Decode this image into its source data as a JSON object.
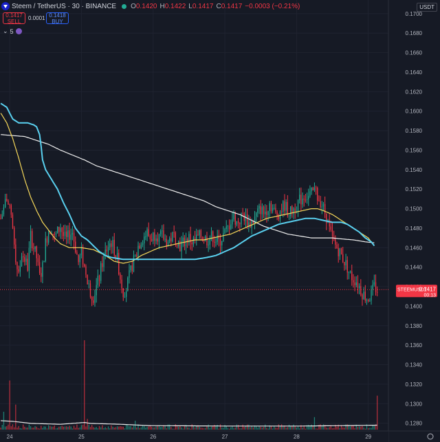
{
  "header": {
    "symbol_title": "Steem / TetherUS · 30 · BINANCE",
    "open_label": "O",
    "open_value": "0.1420",
    "high_label": "H",
    "high_value": "0.1422",
    "low_label": "L",
    "low_value": "0.1417",
    "close_label": "C",
    "close_value": "0.1417",
    "change_value": "−0.0003 (−0.21%)"
  },
  "trade": {
    "sell_price": "0.1417",
    "sell_label": "SELL",
    "spread": "0.0001",
    "buy_price": "0.1418",
    "buy_label": "BUY"
  },
  "indicator_toggle": {
    "label": "5"
  },
  "currency_button": "USDT",
  "colors": {
    "background": "#161a25",
    "up": "#22ab94",
    "down": "#f23645",
    "ma_cyan": "#5ad1f0",
    "ma_yellow": "#f7d95b",
    "ma_white": "#f0f0f0",
    "grid": "#1f2330"
  },
  "chart_data": {
    "type": "candlestick",
    "symbol_tag": "STEEMUSDT",
    "last_price": "0.1417",
    "countdown": "00:13",
    "y_ticks": [
      "0.1700",
      "0.1680",
      "0.1660",
      "0.1640",
      "0.1620",
      "0.1600",
      "0.1580",
      "0.1560",
      "0.1540",
      "0.1520",
      "0.1500",
      "0.1480",
      "0.1460",
      "0.1440",
      "0.1420",
      "0.1400",
      "0.1380",
      "0.1360",
      "0.1340",
      "0.1320",
      "0.1300",
      "0.1280"
    ],
    "ylim": [
      0.1272,
      0.1714
    ],
    "x_ticks": [
      "24",
      "25",
      "26",
      "27",
      "28",
      "29"
    ],
    "x_tick_index": [
      6,
      54,
      102,
      150,
      198,
      246
    ],
    "num_bars": 260,
    "price_close": [
      [
        0,
        0.149
      ],
      [
        2,
        0.15
      ],
      [
        4,
        0.1512
      ],
      [
        6,
        0.1497
      ],
      [
        8,
        0.1478
      ],
      [
        10,
        0.145
      ],
      [
        12,
        0.143
      ],
      [
        14,
        0.1455
      ],
      [
        16,
        0.1448
      ],
      [
        18,
        0.144
      ],
      [
        20,
        0.1472
      ],
      [
        22,
        0.146
      ],
      [
        24,
        0.145
      ],
      [
        26,
        0.143
      ],
      [
        28,
        0.144
      ],
      [
        30,
        0.1465
      ],
      [
        32,
        0.1478
      ],
      [
        34,
        0.148
      ],
      [
        36,
        0.147
      ],
      [
        38,
        0.1476
      ],
      [
        40,
        0.1482
      ],
      [
        42,
        0.1472
      ],
      [
        44,
        0.1468
      ],
      [
        46,
        0.1474
      ],
      [
        48,
        0.1476
      ],
      [
        50,
        0.146
      ],
      [
        52,
        0.1445
      ],
      [
        54,
        0.1455
      ],
      [
        56,
        0.144
      ],
      [
        58,
        0.1425
      ],
      [
        60,
        0.1415
      ],
      [
        62,
        0.141
      ],
      [
        64,
        0.142
      ],
      [
        66,
        0.143
      ],
      [
        68,
        0.1445
      ],
      [
        70,
        0.1455
      ],
      [
        72,
        0.1462
      ],
      [
        74,
        0.1466
      ],
      [
        76,
        0.1458
      ],
      [
        78,
        0.1448
      ],
      [
        80,
        0.143
      ],
      [
        82,
        0.1415
      ],
      [
        84,
        0.1418
      ],
      [
        86,
        0.143
      ],
      [
        88,
        0.1442
      ],
      [
        90,
        0.145
      ],
      [
        92,
        0.1462
      ],
      [
        94,
        0.1468
      ],
      [
        96,
        0.1472
      ],
      [
        98,
        0.1475
      ],
      [
        100,
        0.147
      ],
      [
        102,
        0.1472
      ],
      [
        104,
        0.1476
      ],
      [
        106,
        0.147
      ],
      [
        108,
        0.1472
      ],
      [
        110,
        0.1468
      ],
      [
        112,
        0.1466
      ],
      [
        114,
        0.147
      ],
      [
        116,
        0.1472
      ],
      [
        118,
        0.1468
      ],
      [
        120,
        0.1462
      ],
      [
        122,
        0.1465
      ],
      [
        124,
        0.1468
      ],
      [
        126,
        0.147
      ],
      [
        128,
        0.1466
      ],
      [
        130,
        0.1468
      ],
      [
        132,
        0.147
      ],
      [
        134,
        0.1472
      ],
      [
        136,
        0.147
      ],
      [
        138,
        0.1468
      ],
      [
        140,
        0.147
      ],
      [
        142,
        0.1472
      ],
      [
        144,
        0.1468
      ],
      [
        146,
        0.1466
      ],
      [
        148,
        0.147
      ],
      [
        150,
        0.1475
      ],
      [
        152,
        0.148
      ],
      [
        154,
        0.1488
      ],
      [
        156,
        0.1492
      ],
      [
        158,
        0.1486
      ],
      [
        160,
        0.1488
      ],
      [
        162,
        0.1494
      ],
      [
        164,
        0.149
      ],
      [
        166,
        0.1484
      ],
      [
        168,
        0.1486
      ],
      [
        170,
        0.149
      ],
      [
        172,
        0.1496
      ],
      [
        174,
        0.15
      ],
      [
        176,
        0.1495
      ],
      [
        178,
        0.15
      ],
      [
        180,
        0.1506
      ],
      [
        182,
        0.15
      ],
      [
        184,
        0.1494
      ],
      [
        186,
        0.1496
      ],
      [
        188,
        0.15
      ],
      [
        190,
        0.1504
      ],
      [
        192,
        0.1498
      ],
      [
        194,
        0.1496
      ],
      [
        196,
        0.15
      ],
      [
        198,
        0.1504
      ],
      [
        200,
        0.1508
      ],
      [
        202,
        0.1512
      ],
      [
        204,
        0.1514
      ],
      [
        206,
        0.1512
      ],
      [
        208,
        0.1515
      ],
      [
        210,
        0.1518
      ],
      [
        212,
        0.1512
      ],
      [
        214,
        0.1508
      ],
      [
        216,
        0.15
      ],
      [
        218,
        0.1492
      ],
      [
        220,
        0.1478
      ],
      [
        222,
        0.1468
      ],
      [
        224,
        0.1462
      ],
      [
        226,
        0.1458
      ],
      [
        228,
        0.1452
      ],
      [
        230,
        0.1446
      ],
      [
        232,
        0.144
      ],
      [
        234,
        0.1432
      ],
      [
        236,
        0.1428
      ],
      [
        238,
        0.1426
      ],
      [
        240,
        0.142
      ],
      [
        242,
        0.1414
      ],
      [
        244,
        0.141
      ],
      [
        246,
        0.1408
      ],
      [
        248,
        0.1412
      ],
      [
        250,
        0.142
      ],
      [
        252,
        0.1417
      ]
    ],
    "ma_cyan": [
      [
        0,
        0.1608
      ],
      [
        4,
        0.1604
      ],
      [
        8,
        0.1592
      ],
      [
        12,
        0.1588
      ],
      [
        16,
        0.1588
      ],
      [
        18,
        0.1588
      ],
      [
        22,
        0.1586
      ],
      [
        24,
        0.1584
      ],
      [
        26,
        0.1576
      ],
      [
        27,
        0.1564
      ],
      [
        28,
        0.155
      ],
      [
        30,
        0.154
      ],
      [
        34,
        0.153
      ],
      [
        38,
        0.152
      ],
      [
        42,
        0.1506
      ],
      [
        46,
        0.1494
      ],
      [
        50,
        0.148
      ],
      [
        54,
        0.1472
      ],
      [
        58,
        0.1468
      ],
      [
        62,
        0.1462
      ],
      [
        66,
        0.1456
      ],
      [
        70,
        0.1452
      ],
      [
        74,
        0.145
      ],
      [
        78,
        0.1449
      ],
      [
        82,
        0.1448
      ],
      [
        90,
        0.1448
      ],
      [
        98,
        0.1448
      ],
      [
        106,
        0.1448
      ],
      [
        114,
        0.1448
      ],
      [
        122,
        0.1448
      ],
      [
        130,
        0.1448
      ],
      [
        138,
        0.145
      ],
      [
        144,
        0.1452
      ],
      [
        150,
        0.1456
      ],
      [
        156,
        0.146
      ],
      [
        162,
        0.1466
      ],
      [
        168,
        0.1472
      ],
      [
        174,
        0.1476
      ],
      [
        180,
        0.148
      ],
      [
        186,
        0.1484
      ],
      [
        192,
        0.1486
      ],
      [
        198,
        0.1488
      ],
      [
        204,
        0.149
      ],
      [
        210,
        0.149
      ],
      [
        216,
        0.1488
      ],
      [
        222,
        0.1486
      ],
      [
        228,
        0.1486
      ],
      [
        232,
        0.1484
      ],
      [
        236,
        0.148
      ],
      [
        240,
        0.1476
      ],
      [
        244,
        0.147
      ],
      [
        248,
        0.1466
      ],
      [
        250,
        0.1462
      ]
    ],
    "ma_yellow": [
      [
        0,
        0.1598
      ],
      [
        4,
        0.1588
      ],
      [
        8,
        0.1572
      ],
      [
        12,
        0.1552
      ],
      [
        16,
        0.153
      ],
      [
        20,
        0.1512
      ],
      [
        24,
        0.1498
      ],
      [
        28,
        0.1486
      ],
      [
        32,
        0.1478
      ],
      [
        36,
        0.147
      ],
      [
        40,
        0.1464
      ],
      [
        46,
        0.146
      ],
      [
        54,
        0.146
      ],
      [
        62,
        0.1458
      ],
      [
        70,
        0.1452
      ],
      [
        76,
        0.1446
      ],
      [
        82,
        0.1444
      ],
      [
        88,
        0.1446
      ],
      [
        94,
        0.1452
      ],
      [
        100,
        0.1456
      ],
      [
        106,
        0.146
      ],
      [
        112,
        0.1462
      ],
      [
        118,
        0.1464
      ],
      [
        124,
        0.1466
      ],
      [
        130,
        0.1468
      ],
      [
        136,
        0.1468
      ],
      [
        142,
        0.147
      ],
      [
        148,
        0.1472
      ],
      [
        154,
        0.1474
      ],
      [
        160,
        0.1478
      ],
      [
        166,
        0.1482
      ],
      [
        172,
        0.1486
      ],
      [
        178,
        0.149
      ],
      [
        184,
        0.1492
      ],
      [
        190,
        0.1494
      ],
      [
        196,
        0.1496
      ],
      [
        202,
        0.1498
      ],
      [
        208,
        0.15
      ],
      [
        212,
        0.15
      ],
      [
        216,
        0.1498
      ],
      [
        222,
        0.1494
      ],
      [
        228,
        0.1488
      ],
      [
        234,
        0.1482
      ],
      [
        240,
        0.1476
      ],
      [
        246,
        0.147
      ],
      [
        250,
        0.1462
      ]
    ],
    "ma_white": [
      [
        0,
        0.1576
      ],
      [
        8,
        0.1575
      ],
      [
        16,
        0.1574
      ],
      [
        24,
        0.157
      ],
      [
        32,
        0.1566
      ],
      [
        40,
        0.156
      ],
      [
        48,
        0.1555
      ],
      [
        56,
        0.155
      ],
      [
        64,
        0.1544
      ],
      [
        72,
        0.154
      ],
      [
        80,
        0.1536
      ],
      [
        88,
        0.1532
      ],
      [
        96,
        0.1528
      ],
      [
        104,
        0.1524
      ],
      [
        112,
        0.152
      ],
      [
        120,
        0.1516
      ],
      [
        128,
        0.1512
      ],
      [
        136,
        0.1508
      ],
      [
        144,
        0.1502
      ],
      [
        152,
        0.1498
      ],
      [
        160,
        0.1494
      ],
      [
        168,
        0.1488
      ],
      [
        176,
        0.1482
      ],
      [
        184,
        0.1478
      ],
      [
        192,
        0.1474
      ],
      [
        200,
        0.1472
      ],
      [
        208,
        0.147
      ],
      [
        216,
        0.147
      ],
      [
        222,
        0.147
      ],
      [
        228,
        0.1469
      ],
      [
        236,
        0.1468
      ],
      [
        244,
        0.1466
      ],
      [
        250,
        0.1465
      ]
    ],
    "volume_spikes": [
      [
        2,
        0.2
      ],
      [
        6,
        0.55
      ],
      [
        10,
        0.28
      ],
      [
        56,
        1.0
      ],
      [
        58,
        0.12
      ],
      [
        90,
        0.1
      ],
      [
        210,
        0.14
      ],
      [
        252,
        0.38
      ]
    ],
    "volume_ma": [
      [
        0,
        0.1
      ],
      [
        10,
        0.09
      ],
      [
        20,
        0.07
      ],
      [
        40,
        0.06
      ],
      [
        56,
        0.08
      ],
      [
        60,
        0.07
      ],
      [
        80,
        0.06
      ],
      [
        100,
        0.045
      ],
      [
        150,
        0.04
      ],
      [
        200,
        0.04
      ],
      [
        230,
        0.045
      ],
      [
        252,
        0.05
      ]
    ]
  }
}
